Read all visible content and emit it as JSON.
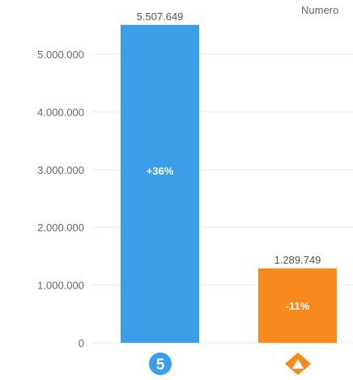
{
  "chart_data": {
    "type": "bar",
    "title": "Numero",
    "categories": [
      "Telecinco",
      "Antena 3"
    ],
    "values": [
      5507649,
      1289749
    ],
    "value_labels": [
      "5.507.649",
      "1.289.749"
    ],
    "change_labels": [
      "+36%",
      "-11%"
    ],
    "colors": [
      "#3a9ee8",
      "#f7891f"
    ],
    "yticks": [
      0,
      1000000,
      2000000,
      3000000,
      4000000,
      5000000
    ],
    "ytick_labels": [
      "0",
      "1.000.000",
      "2.000.000",
      "3.000.000",
      "4.000.000",
      "5.000.000"
    ],
    "ylim": [
      0,
      5500000
    ],
    "grid": true,
    "xlabel": "",
    "ylabel": ""
  },
  "logos": [
    {
      "name": "telecinco-logo-icon",
      "text": "5",
      "color": "#3a9ee8"
    },
    {
      "name": "antena3-logo-icon",
      "color": "#f7891f"
    }
  ]
}
